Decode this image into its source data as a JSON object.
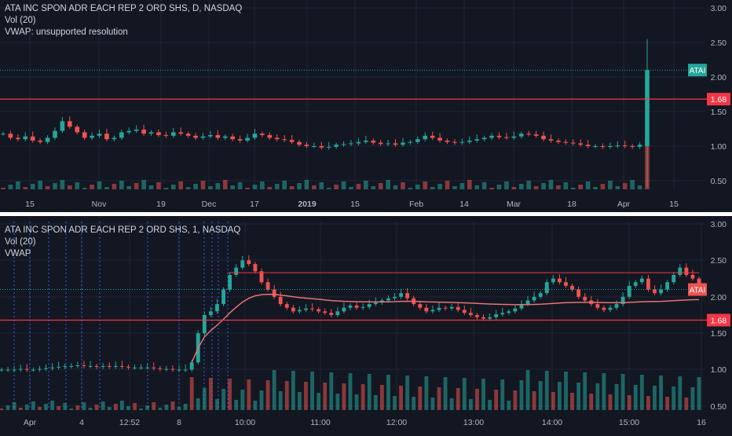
{
  "colors": {
    "background": "#131722",
    "grid": "#1f2533",
    "axis_text": "#b2b5be",
    "up": "#26a69a",
    "down": "#ef5350",
    "level_line": "#f23645",
    "vwap": "#e57373",
    "divider": "#ffffff",
    "dotted_blue": "#2962ff",
    "price_line": "#26a69a"
  },
  "chart_data": [
    {
      "type": "candlestick",
      "panel": "top",
      "legend": [
        "ATA INC SPON ADR EACH REP 2 ORD SHS, D, NASDAQ",
        "Vol (20)",
        "VWAP: unsupported resolution"
      ],
      "x_tick_labels": [
        "15",
        "Nov",
        "19",
        "Dec",
        "17",
        "2019",
        "15",
        "Feb",
        "14",
        "Mar",
        "18",
        "Apr",
        "15"
      ],
      "y_tick_labels": [
        "3.00",
        "2.50",
        "2.00",
        "1.50",
        "1.00",
        "0.50"
      ],
      "ylim": [
        0.3,
        3.0
      ],
      "price_tag": {
        "text": "ATAI",
        "value": 2.1
      },
      "level": {
        "text": "1.68",
        "value": 1.68
      },
      "close_series": [
        1.18,
        1.12,
        1.1,
        1.14,
        1.08,
        1.06,
        1.12,
        1.22,
        1.36,
        1.28,
        1.2,
        1.12,
        1.15,
        1.18,
        1.1,
        1.12,
        1.2,
        1.22,
        1.24,
        1.18,
        1.2,
        1.16,
        1.15,
        1.2,
        1.18,
        1.15,
        1.12,
        1.14,
        1.16,
        1.12,
        1.14,
        1.1,
        1.08,
        1.12,
        1.18,
        1.16,
        1.12,
        1.1,
        1.09,
        1.06,
        1.02,
        1.0,
        1.0,
        0.98,
        0.99,
        1.02,
        1.03,
        1.04,
        1.06,
        1.08,
        1.05,
        1.03,
        1.04,
        1.02,
        1.05,
        1.06,
        1.1,
        1.15,
        1.12,
        1.08,
        1.06,
        1.05,
        1.06,
        1.08,
        1.1,
        1.12,
        1.15,
        1.13,
        1.12,
        1.14,
        1.18,
        1.17,
        1.15,
        1.1,
        1.08,
        1.06,
        1.05,
        1.04,
        1.02,
        1.0,
        1.0,
        0.99,
        1.0,
        1.01,
        1.0,
        0.99,
        1.02,
        2.1
      ],
      "extreme_candle": {
        "open": 1.0,
        "high": 2.55,
        "low": 0.25,
        "close": 2.1
      }
    },
    {
      "type": "candlestick",
      "panel": "bottom",
      "legend": [
        "ATA INC SPON ADR EACH REP 2 ORD SHS, 1, NASDAQ",
        "Vol (20)",
        "VWAP"
      ],
      "x_tick_labels": [
        "Apr",
        "4",
        "12:52",
        "8",
        "10:00",
        "11:00",
        "12:00",
        "13:00",
        "14:00",
        "15:00",
        "16"
      ],
      "y_tick_labels": [
        "3.00",
        "2.50",
        "2.00",
        "1.50",
        "1.00",
        "0.50"
      ],
      "ylim": [
        0.4,
        3.0
      ],
      "price_tag": {
        "text": "ATAI",
        "value": 2.1
      },
      "level": {
        "text": "1.68",
        "value": 1.68
      },
      "resistance": 2.33,
      "close_series": [
        1.0,
        1.0,
        1.0,
        1.01,
        1.0,
        1.0,
        1.01,
        1.02,
        1.03,
        1.04,
        1.05,
        1.05,
        1.06,
        1.05,
        1.05,
        1.04,
        1.05,
        1.04,
        1.05,
        1.04,
        1.03,
        1.03,
        1.03,
        1.03,
        1.02,
        1.01,
        1.01,
        1.0,
        1.0,
        1.0,
        1.1,
        1.5,
        1.75,
        1.8,
        1.9,
        2.1,
        2.3,
        2.4,
        2.5,
        2.45,
        2.35,
        2.2,
        2.1,
        2.0,
        1.9,
        1.85,
        1.8,
        1.82,
        1.84,
        1.83,
        1.8,
        1.78,
        1.75,
        1.8,
        1.85,
        1.88,
        1.85,
        1.86,
        1.9,
        1.92,
        1.95,
        1.98,
        2.0,
        2.05,
        1.98,
        1.9,
        1.85,
        1.8,
        1.82,
        1.85,
        1.84,
        1.86,
        1.82,
        1.78,
        1.75,
        1.72,
        1.7,
        1.72,
        1.76,
        1.78,
        1.8,
        1.84,
        1.9,
        1.95,
        2.0,
        2.05,
        2.2,
        2.25,
        2.2,
        2.15,
        2.1,
        2.0,
        1.95,
        1.9,
        1.85,
        1.82,
        1.85,
        1.9,
        2.0,
        2.15,
        2.2,
        2.25,
        2.1,
        2.05,
        2.1,
        2.2,
        2.3,
        2.4,
        2.3,
        2.25,
        2.1
      ]
    }
  ]
}
